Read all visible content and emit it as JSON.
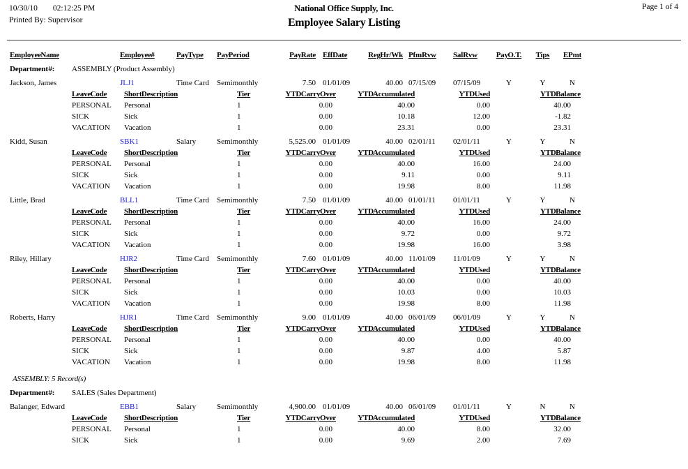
{
  "header": {
    "date": "10/30/10",
    "time": "02:12:25 PM",
    "printed_by": "Printed By: Supervisor",
    "company": "National Office Supply, Inc.",
    "title": "Employee Salary Listing",
    "page": "Page 1 of 4"
  },
  "labels": {
    "department": "Department #:"
  },
  "colors": {
    "link": "#2222dd"
  },
  "columns": [
    "Employee Name",
    "Employee #",
    "Pay Type",
    "Pay Period",
    "Pay Rate",
    "EffDate",
    "Reg Hr/Wk",
    "PfmRvw",
    "SalRvw",
    "Pay O.T.",
    "Tips",
    "EPmt"
  ],
  "leave_columns": [
    "Leave Code",
    "Short Description",
    "Tier",
    "YTD Carry Over",
    "YTD Accumulated",
    "YTD Used",
    "YTD Balance"
  ],
  "sections": [
    {
      "department": "ASSEMBLY (Product Assembly)",
      "footer": "ASSEMBLY: 5 Record(s)",
      "employees": [
        {
          "name": "Jackson, James",
          "number": "JLJ1",
          "pay_type": "Time Card",
          "pay_period": "Semimonthly",
          "pay_rate": "7.50",
          "eff_date": "01/01/09",
          "reg_hr_wk": "40.00",
          "pfm_rvw": "07/15/09",
          "sal_rvw": "07/15/09",
          "pay_ot": "Y",
          "tips": "Y",
          "epmt": "N",
          "leaves": [
            [
              "PERSONAL",
              "Personal",
              "1",
              "0.00",
              "40.00",
              "0.00",
              "40.00"
            ],
            [
              "SICK",
              "Sick",
              "1",
              "0.00",
              "10.18",
              "12.00",
              "-1.82"
            ],
            [
              "VACATION",
              "Vacation",
              "1",
              "0.00",
              "23.31",
              "0.00",
              "23.31"
            ]
          ]
        },
        {
          "name": "Kidd, Susan",
          "number": "SBK1",
          "pay_type": "Salary",
          "pay_period": "Semimonthly",
          "pay_rate": "5,525.00",
          "eff_date": "01/01/09",
          "reg_hr_wk": "40.00",
          "pfm_rvw": "02/01/11",
          "sal_rvw": "02/01/11",
          "pay_ot": "Y",
          "tips": "Y",
          "epmt": "N",
          "leaves": [
            [
              "PERSONAL",
              "Personal",
              "1",
              "0.00",
              "40.00",
              "16.00",
              "24.00"
            ],
            [
              "SICK",
              "Sick",
              "1",
              "0.00",
              "9.11",
              "0.00",
              "9.11"
            ],
            [
              "VACATION",
              "Vacation",
              "1",
              "0.00",
              "19.98",
              "8.00",
              "11.98"
            ]
          ]
        },
        {
          "name": "Little, Brad",
          "number": "BLL1",
          "pay_type": "Time Card",
          "pay_period": "Semimonthly",
          "pay_rate": "7.50",
          "eff_date": "01/01/09",
          "reg_hr_wk": "40.00",
          "pfm_rvw": "01/01/11",
          "sal_rvw": "01/01/11",
          "pay_ot": "Y",
          "tips": "Y",
          "epmt": "N",
          "leaves": [
            [
              "PERSONAL",
              "Personal",
              "1",
              "0.00",
              "40.00",
              "16.00",
              "24.00"
            ],
            [
              "SICK",
              "Sick",
              "1",
              "0.00",
              "9.72",
              "0.00",
              "9.72"
            ],
            [
              "VACATION",
              "Vacation",
              "1",
              "0.00",
              "19.98",
              "16.00",
              "3.98"
            ]
          ]
        },
        {
          "name": "Riley, Hillary",
          "number": "HJR2",
          "pay_type": "Time Card",
          "pay_period": "Semimonthly",
          "pay_rate": "7.60",
          "eff_date": "01/01/09",
          "reg_hr_wk": "40.00",
          "pfm_rvw": "11/01/09",
          "sal_rvw": "11/01/09",
          "pay_ot": "Y",
          "tips": "Y",
          "epmt": "N",
          "leaves": [
            [
              "PERSONAL",
              "Personal",
              "1",
              "0.00",
              "40.00",
              "0.00",
              "40.00"
            ],
            [
              "SICK",
              "Sick",
              "1",
              "0.00",
              "10.03",
              "0.00",
              "10.03"
            ],
            [
              "VACATION",
              "Vacation",
              "1",
              "0.00",
              "19.98",
              "8.00",
              "11.98"
            ]
          ]
        },
        {
          "name": "Roberts, Harry",
          "number": "HJR1",
          "pay_type": "Time Card",
          "pay_period": "Semimonthly",
          "pay_rate": "9.00",
          "eff_date": "01/01/09",
          "reg_hr_wk": "40.00",
          "pfm_rvw": "06/01/09",
          "sal_rvw": "06/01/09",
          "pay_ot": "Y",
          "tips": "Y",
          "epmt": "N",
          "leaves": [
            [
              "PERSONAL",
              "Personal",
              "1",
              "0.00",
              "40.00",
              "0.00",
              "40.00"
            ],
            [
              "SICK",
              "Sick",
              "1",
              "0.00",
              "9.87",
              "4.00",
              "5.87"
            ],
            [
              "VACATION",
              "Vacation",
              "1",
              "0.00",
              "19.98",
              "8.00",
              "11.98"
            ]
          ]
        }
      ]
    },
    {
      "department": "SALES (Sales Department)",
      "footer": "",
      "employees": [
        {
          "name": "Balanger, Edward",
          "number": "EBB1",
          "pay_type": "Salary",
          "pay_period": "Semimonthly",
          "pay_rate": "4,900.00",
          "eff_date": "01/01/09",
          "reg_hr_wk": "40.00",
          "pfm_rvw": "06/01/09",
          "sal_rvw": "01/01/11",
          "pay_ot": "Y",
          "tips": "N",
          "epmt": "N",
          "leaves": [
            [
              "PERSONAL",
              "Personal",
              "1",
              "0.00",
              "40.00",
              "8.00",
              "32.00"
            ],
            [
              "SICK",
              "Sick",
              "1",
              "0.00",
              "9.69",
              "2.00",
              "7.69"
            ]
          ]
        }
      ]
    }
  ]
}
